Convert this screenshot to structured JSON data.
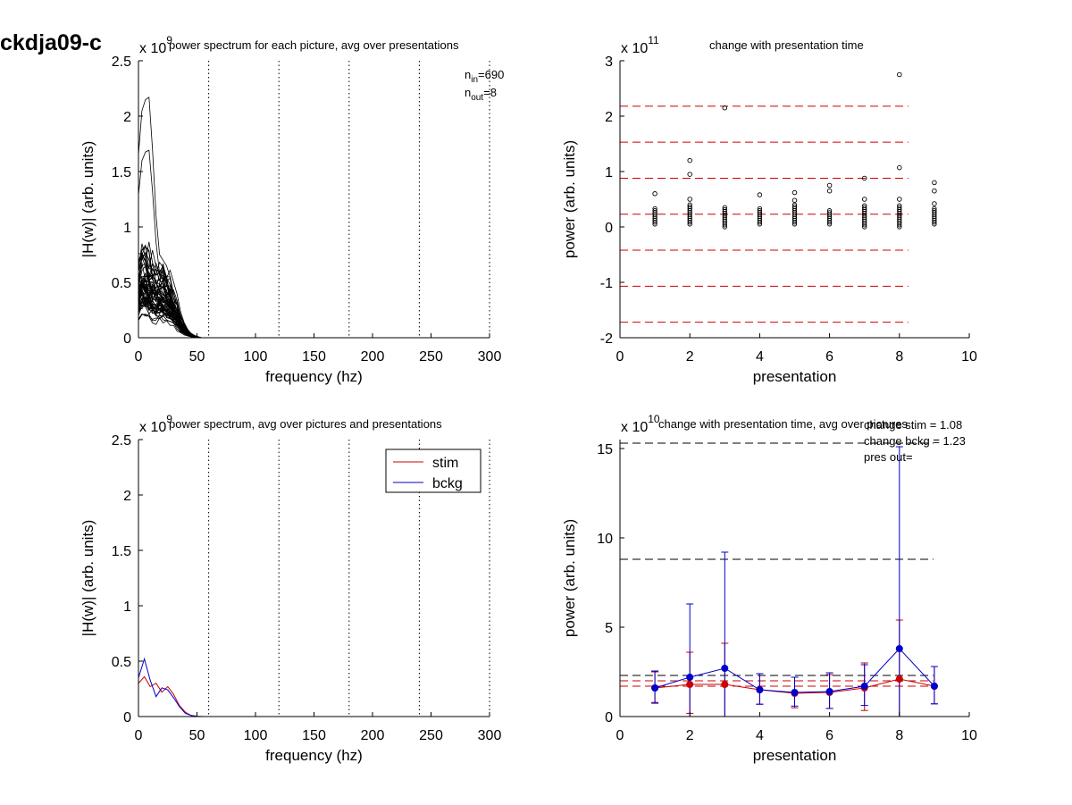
{
  "figure_title": "ckdja09-c",
  "chart_data": [
    {
      "id": "tl",
      "type": "line",
      "title": "power spectrum for each picture, avg over presentations",
      "xlabel": "frequency (hz)",
      "ylabel": "|H(w)| (arb. units)",
      "exponent": {
        "base": "x 10",
        "power": "9"
      },
      "xlim": [
        0,
        300
      ],
      "ylim": [
        0,
        2.5
      ],
      "xticks": [
        0,
        50,
        100,
        150,
        200,
        250,
        300
      ],
      "yticks": [
        0,
        0.5,
        1,
        1.5,
        2,
        2.5
      ],
      "vlines": [
        60,
        120,
        180,
        240,
        300
      ],
      "annotations": [
        {
          "main": "n",
          "sub": "in",
          "rest": "=690"
        },
        {
          "main": "n",
          "sub": "out",
          "rest": "=8"
        }
      ],
      "series_count": 690,
      "envelope": {
        "x": [
          0,
          3,
          6,
          9,
          12,
          15,
          18,
          21,
          24,
          27,
          30,
          33,
          36,
          39,
          42,
          45,
          48,
          51,
          54,
          60,
          300
        ],
        "upper": [
          1.65,
          2.05,
          2.15,
          2.17,
          1.7,
          1.1,
          0.75,
          0.7,
          0.65,
          0.55,
          0.4,
          0.3,
          0.2,
          0.12,
          0.06,
          0.04,
          0.02,
          0.01,
          0,
          0,
          0
        ],
        "typical": [
          0.3,
          0.35,
          0.35,
          0.32,
          0.3,
          0.28,
          0.28,
          0.27,
          0.25,
          0.22,
          0.18,
          0.14,
          0.09,
          0.05,
          0.03,
          0.015,
          0.008,
          0.002,
          0,
          0,
          0
        ]
      },
      "color": "#000000",
      "vline_color": "#000000"
    },
    {
      "id": "tr",
      "type": "scatter",
      "title": "change with presentation time",
      "xlabel": "presentation",
      "ylabel": "power (arb. units)",
      "exponent": {
        "base": "x 10",
        "power": "11"
      },
      "xlim": [
        0,
        10
      ],
      "ylim": [
        -2,
        3
      ],
      "xticks": [
        0,
        2,
        4,
        6,
        8,
        10
      ],
      "yticks": [
        -2,
        -1,
        0,
        1,
        2,
        3
      ],
      "hlines": [
        2.18,
        1.53,
        0.88,
        0.23,
        -0.42,
        -1.07,
        -1.72
      ],
      "hline_color": "#cc0000",
      "outliers": [
        {
          "x": 1,
          "y": 0.6
        },
        {
          "x": 2,
          "y": 1.2
        },
        {
          "x": 2,
          "y": 0.95
        },
        {
          "x": 2,
          "y": 0.5
        },
        {
          "x": 3,
          "y": 2.15
        },
        {
          "x": 4,
          "y": 0.58
        },
        {
          "x": 5,
          "y": 0.62
        },
        {
          "x": 5,
          "y": 0.48
        },
        {
          "x": 6,
          "y": 0.75
        },
        {
          "x": 6,
          "y": 0.65
        },
        {
          "x": 7,
          "y": 0.88
        },
        {
          "x": 7,
          "y": 0.5
        },
        {
          "x": 8,
          "y": 2.75
        },
        {
          "x": 8,
          "y": 1.07
        },
        {
          "x": 8,
          "y": 0.5
        },
        {
          "x": 9,
          "y": 0.8
        },
        {
          "x": 9,
          "y": 0.65
        },
        {
          "x": 9,
          "y": 0.42
        }
      ],
      "cluster": [
        {
          "x": 1,
          "min": 0.05,
          "max": 0.35
        },
        {
          "x": 2,
          "min": 0.05,
          "max": 0.4
        },
        {
          "x": 3,
          "min": 0.0,
          "max": 0.35
        },
        {
          "x": 4,
          "min": 0.05,
          "max": 0.35
        },
        {
          "x": 5,
          "min": 0.05,
          "max": 0.4
        },
        {
          "x": 6,
          "min": 0.05,
          "max": 0.3
        },
        {
          "x": 7,
          "min": 0.0,
          "max": 0.4
        },
        {
          "x": 8,
          "min": 0.0,
          "max": 0.4
        },
        {
          "x": 9,
          "min": 0.05,
          "max": 0.35
        }
      ]
    },
    {
      "id": "bl",
      "type": "line",
      "title": "power spectrum, avg over pictures and presentations",
      "xlabel": "frequency (hz)",
      "ylabel": "|H(w)| (arb. units)",
      "exponent": {
        "base": "x 10",
        "power": "9"
      },
      "xlim": [
        0,
        300
      ],
      "ylim": [
        0,
        2.5
      ],
      "xticks": [
        0,
        50,
        100,
        150,
        200,
        250,
        300
      ],
      "yticks": [
        0,
        0.5,
        1,
        1.5,
        2,
        2.5
      ],
      "vlines": [
        60,
        120,
        180,
        240,
        300
      ],
      "legend_position": "top-right",
      "series": [
        {
          "name": "stim",
          "color": "#cc0000",
          "x": [
            0,
            5,
            10,
            15,
            20,
            25,
            30,
            35,
            40,
            45,
            50,
            55,
            60,
            300
          ],
          "y": [
            0.3,
            0.36,
            0.27,
            0.3,
            0.22,
            0.27,
            0.2,
            0.1,
            0.04,
            0.01,
            0.002,
            0,
            0,
            0
          ]
        },
        {
          "name": "bckg",
          "color": "#0000cc",
          "x": [
            0,
            5,
            10,
            15,
            20,
            25,
            30,
            35,
            40,
            45,
            50,
            55,
            60,
            300
          ],
          "y": [
            0.35,
            0.52,
            0.33,
            0.18,
            0.26,
            0.24,
            0.17,
            0.09,
            0.03,
            0.01,
            0.002,
            0,
            0,
            0
          ]
        }
      ]
    },
    {
      "id": "br",
      "type": "line",
      "title": "change with presentation time, avg over pictures",
      "xlabel": "presentation",
      "ylabel": "power (arb. units)",
      "exponent": {
        "base": "x 10",
        "power": "10"
      },
      "xlim": [
        0,
        10
      ],
      "ylim": [
        0,
        15.5
      ],
      "xticks": [
        0,
        2,
        4,
        6,
        8,
        10
      ],
      "yticks": [
        0,
        5,
        10,
        15
      ],
      "annotations": [
        "change stim = 1.08",
        "change bckg = 1.23",
        "pres out="
      ],
      "hlines": [
        {
          "y": 15.3,
          "color": "#000000"
        },
        {
          "y": 8.8,
          "color": "#000000"
        },
        {
          "y": 2.3,
          "color": "#000000"
        },
        {
          "y": 2.0,
          "color": "#cc0000"
        },
        {
          "y": 1.7,
          "color": "#cc0000"
        }
      ],
      "series": [
        {
          "name": "stim",
          "color": "#cc0000",
          "x": [
            1,
            2,
            3,
            4,
            5,
            6,
            7,
            8,
            9
          ],
          "y": [
            1.6,
            1.8,
            1.8,
            1.5,
            1.3,
            1.35,
            1.6,
            2.1,
            1.7
          ],
          "err": [
            0.9,
            1.8,
            2.3,
            0.9,
            0.9,
            1.0,
            1.4,
            3.3,
            1.1
          ]
        },
        {
          "name": "bckg",
          "color": "#0000cc",
          "x": [
            1,
            2,
            3,
            4,
            5,
            6,
            7,
            8,
            9
          ],
          "y": [
            1.6,
            2.2,
            2.7,
            1.5,
            1.35,
            1.4,
            1.7,
            3.8,
            1.7
          ],
          "err": [
            0.95,
            4.1,
            6.5,
            0.9,
            0.85,
            1.05,
            1.2,
            11.3,
            1.1
          ]
        }
      ]
    }
  ]
}
